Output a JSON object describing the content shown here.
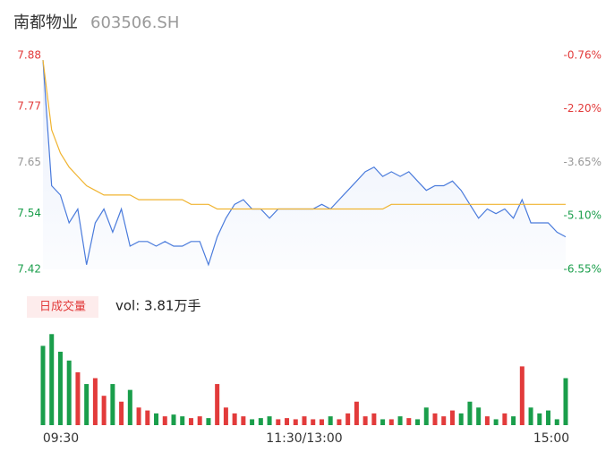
{
  "header": {
    "title": "南都物业",
    "subtitle": "603506.SH"
  },
  "chart_data": [
    {
      "type": "line",
      "x": [
        0,
        4,
        8,
        12,
        16,
        20,
        24,
        28,
        32,
        36,
        40,
        44,
        48,
        52,
        56,
        60,
        64,
        68,
        72,
        76,
        80,
        84,
        88,
        92,
        96,
        100,
        104,
        108,
        112,
        116,
        120,
        124,
        128,
        132,
        136,
        140,
        144,
        148,
        152,
        156,
        160,
        164,
        168,
        172,
        176,
        180,
        184,
        188,
        192,
        196,
        200,
        204,
        208,
        212,
        216,
        220,
        224,
        228,
        232,
        236,
        240
      ],
      "series": [
        {
          "name": "price",
          "color": "#4a7bdc",
          "values": [
            7.87,
            7.6,
            7.58,
            7.52,
            7.55,
            7.43,
            7.52,
            7.55,
            7.5,
            7.55,
            7.47,
            7.48,
            7.48,
            7.47,
            7.48,
            7.47,
            7.47,
            7.48,
            7.48,
            7.43,
            7.49,
            7.53,
            7.56,
            7.57,
            7.55,
            7.55,
            7.53,
            7.55,
            7.55,
            7.55,
            7.55,
            7.55,
            7.56,
            7.55,
            7.57,
            7.59,
            7.61,
            7.63,
            7.64,
            7.62,
            7.63,
            7.62,
            7.63,
            7.61,
            7.59,
            7.6,
            7.6,
            7.61,
            7.59,
            7.56,
            7.53,
            7.55,
            7.54,
            7.55,
            7.53,
            7.57,
            7.52,
            7.52,
            7.52,
            7.5,
            7.49
          ]
        },
        {
          "name": "average",
          "color": "#f0b431",
          "values": [
            7.87,
            7.72,
            7.67,
            7.64,
            7.62,
            7.6,
            7.59,
            7.58,
            7.58,
            7.58,
            7.58,
            7.57,
            7.57,
            7.57,
            7.57,
            7.57,
            7.57,
            7.56,
            7.56,
            7.56,
            7.55,
            7.55,
            7.55,
            7.55,
            7.55,
            7.55,
            7.55,
            7.55,
            7.55,
            7.55,
            7.55,
            7.55,
            7.55,
            7.55,
            7.55,
            7.55,
            7.55,
            7.55,
            7.55,
            7.55,
            7.56,
            7.56,
            7.56,
            7.56,
            7.56,
            7.56,
            7.56,
            7.56,
            7.56,
            7.56,
            7.56,
            7.56,
            7.56,
            7.56,
            7.56,
            7.56,
            7.56,
            7.56,
            7.56,
            7.56,
            7.56
          ]
        }
      ],
      "xlim": [
        0,
        240
      ],
      "ylim": [
        7.42,
        7.88
      ],
      "yticks": [
        7.88,
        7.77,
        7.65,
        7.54,
        7.42
      ],
      "ytick_colors": [
        "#e23b3b",
        "#e23b3b",
        "#999999",
        "#1a9e4b",
        "#1a9e4b"
      ],
      "y2lim": [
        -6.55,
        -0.76
      ],
      "y2ticks": [
        {
          "value": -0.76,
          "label": "-0.76%"
        },
        {
          "value": -2.2,
          "label": "-2.20%"
        },
        {
          "value": -3.65,
          "label": "-3.65%"
        },
        {
          "value": -5.1,
          "label": "-5.10%"
        },
        {
          "value": -6.55,
          "label": "-6.55%"
        }
      ]
    },
    {
      "type": "bar",
      "title": "日成交量",
      "subtitle": "vol: 3.81万手",
      "up_color": "#e23b3b",
      "down_color": "#1a9e4b",
      "values": [
        1350,
        1550,
        1250,
        1100,
        900,
        700,
        800,
        500,
        700,
        400,
        600,
        300,
        250,
        200,
        150,
        180,
        150,
        120,
        150,
        120,
        700,
        300,
        200,
        150,
        100,
        120,
        150,
        100,
        120,
        100,
        150,
        100,
        100,
        150,
        100,
        200,
        400,
        150,
        200,
        100,
        100,
        150,
        120,
        100,
        300,
        200,
        150,
        250,
        200,
        400,
        300,
        150,
        100,
        200,
        150,
        1000,
        300,
        200,
        250,
        100,
        800
      ],
      "ylim": [
        0,
        1600
      ],
      "xticks": [
        {
          "value": 0,
          "label": "09:30"
        },
        {
          "value": 120,
          "label": "11:30/13:00"
        },
        {
          "value": 240,
          "label": "15:00"
        }
      ]
    }
  ]
}
